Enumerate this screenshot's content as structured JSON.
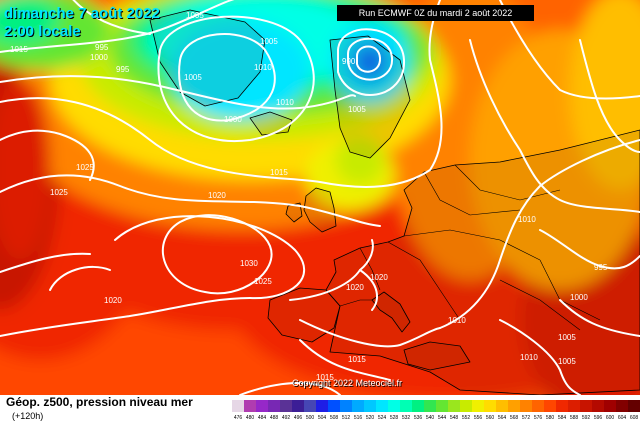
{
  "header": {
    "date": "dimanche 7 août 2022",
    "time": "2:00 locale",
    "run": "Run ECMWF 0Z du mardi 2 août 2022"
  },
  "map": {
    "copyright": "Copyright 2022 Meteociel.fr",
    "isobar_labels": [
      {
        "id": "iso-1005-nw-top",
        "text": "1005"
      },
      {
        "id": "iso-995-nw",
        "text": "995"
      },
      {
        "id": "iso-1000-nw",
        "text": "1000"
      },
      {
        "id": "iso-1015-nw",
        "text": "1015"
      },
      {
        "id": "iso-995-west",
        "text": "995"
      },
      {
        "id": "iso-1005-iceland",
        "text": "1005"
      },
      {
        "id": "iso-1010-iceland",
        "text": "1010"
      },
      {
        "id": "iso-1005-greenland",
        "text": "1005"
      },
      {
        "id": "iso-1010-mid",
        "text": "1010"
      },
      {
        "id": "iso-1000-low",
        "text": "1000"
      },
      {
        "id": "iso-990-scandinavia",
        "text": "990"
      },
      {
        "id": "iso-1005-scandinavia",
        "text": "1005"
      },
      {
        "id": "iso-1025-west",
        "text": "1025"
      },
      {
        "id": "iso-1025-atlantic",
        "text": "1025"
      },
      {
        "id": "iso-1015-north-sea",
        "text": "1015"
      },
      {
        "id": "iso-1020-atlantic",
        "text": "1020"
      },
      {
        "id": "iso-1030-azores",
        "text": "1030"
      },
      {
        "id": "iso-1025-azores",
        "text": "1025"
      },
      {
        "id": "iso-1020-southwest",
        "text": "1020"
      },
      {
        "id": "iso-1020-iberia",
        "text": "1020"
      },
      {
        "id": "iso-1020-west-med",
        "text": "1020"
      },
      {
        "id": "iso-1010-russia",
        "text": "1010"
      },
      {
        "id": "iso-995-east",
        "text": "995"
      },
      {
        "id": "iso-1010-med",
        "text": "1010"
      },
      {
        "id": "iso-1000-turkey",
        "text": "1000"
      },
      {
        "id": "iso-1005-levant",
        "text": "1005"
      },
      {
        "id": "iso-1005-southeast",
        "text": "1005"
      },
      {
        "id": "iso-1015-africa",
        "text": "1015"
      },
      {
        "id": "iso-1010-africa",
        "text": "1010"
      },
      {
        "id": "iso-1015-south",
        "text": "1015"
      }
    ]
  },
  "legend": {
    "product": "Géop. z500, pression niveau mer",
    "lead_time": "(+120h)",
    "scale": [
      {
        "value": "476",
        "color": "#e6d7e6"
      },
      {
        "value": "480",
        "color": "#b03cb0"
      },
      {
        "value": "484",
        "color": "#9628c8"
      },
      {
        "value": "488",
        "color": "#7828b4"
      },
      {
        "value": "492",
        "color": "#5a3296"
      },
      {
        "value": "496",
        "color": "#3c1e96"
      },
      {
        "value": "500",
        "color": "#4646b4"
      },
      {
        "value": "504",
        "color": "#1e1ee6"
      },
      {
        "value": "508",
        "color": "#0050ff"
      },
      {
        "value": "512",
        "color": "#0082ff"
      },
      {
        "value": "516",
        "color": "#00aaff"
      },
      {
        "value": "520",
        "color": "#00c8ff"
      },
      {
        "value": "524",
        "color": "#00e6ff"
      },
      {
        "value": "528",
        "color": "#00ffe6"
      },
      {
        "value": "532",
        "color": "#00ffb4"
      },
      {
        "value": "536",
        "color": "#00f082"
      },
      {
        "value": "540",
        "color": "#32e650"
      },
      {
        "value": "544",
        "color": "#64e632"
      },
      {
        "value": "548",
        "color": "#9ae61e"
      },
      {
        "value": "552",
        "color": "#c8eb00"
      },
      {
        "value": "556",
        "color": "#f0f000"
      },
      {
        "value": "560",
        "color": "#ffdc00"
      },
      {
        "value": "564",
        "color": "#ffbe00"
      },
      {
        "value": "568",
        "color": "#ffa000"
      },
      {
        "value": "572",
        "color": "#ff8200"
      },
      {
        "value": "576",
        "color": "#ff6400"
      },
      {
        "value": "580",
        "color": "#ff4600"
      },
      {
        "value": "584",
        "color": "#f02800"
      },
      {
        "value": "588",
        "color": "#dc1e00"
      },
      {
        "value": "592",
        "color": "#c81400"
      },
      {
        "value": "596",
        "color": "#b40a00"
      },
      {
        "value": "600",
        "color": "#a00000"
      },
      {
        "value": "604",
        "color": "#820000"
      },
      {
        "value": "608",
        "color": "#640000"
      },
      {
        "value": "612",
        "color": "#460000"
      },
      {
        "value": "616",
        "color": "#280000"
      }
    ]
  }
}
